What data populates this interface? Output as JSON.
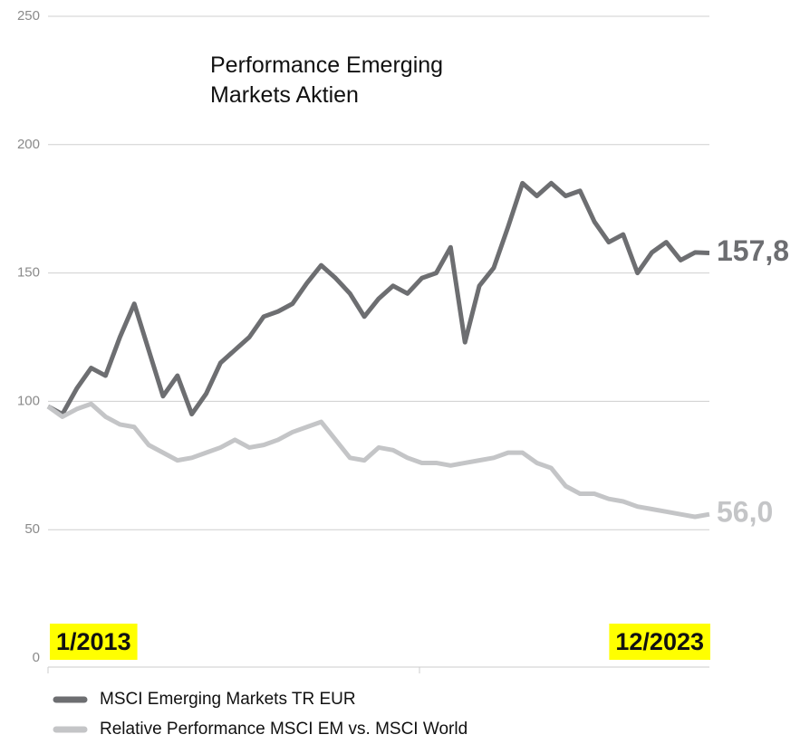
{
  "chart_data": {
    "type": "line",
    "title": "Performance Emerging Markets Aktien",
    "categories": [
      "1/2013",
      null,
      null,
      null,
      null,
      null,
      null,
      null,
      null,
      null,
      null,
      null,
      null,
      null,
      null,
      null,
      null,
      null,
      null,
      null,
      null,
      null,
      null,
      null,
      null,
      null,
      null,
      null,
      null,
      null,
      null,
      null,
      null,
      null,
      null,
      null,
      null,
      null,
      null,
      null,
      null,
      null,
      null,
      null,
      null,
      null,
      "12/2023"
    ],
    "series": [
      {
        "name": "MSCI Emerging Markets TR EUR",
        "color": "#6d6e71",
        "values": [
          98,
          95,
          105,
          113,
          110,
          125,
          138,
          120,
          102,
          110,
          95,
          103,
          115,
          120,
          125,
          133,
          135,
          138,
          146,
          153,
          148,
          142,
          133,
          140,
          145,
          142,
          148,
          150,
          160,
          123,
          145,
          152,
          168,
          185,
          180,
          185,
          180,
          182,
          170,
          162,
          165,
          150,
          158,
          162,
          155,
          158,
          157.8
        ],
        "value_labels": [
          null,
          null,
          null,
          null,
          null,
          null,
          null,
          null,
          null,
          null,
          null,
          null,
          null,
          null,
          null,
          null,
          null,
          null,
          null,
          null,
          null,
          null,
          null,
          null,
          null,
          null,
          null,
          null,
          null,
          null,
          null,
          null,
          null,
          null,
          null,
          null,
          null,
          null,
          null,
          null,
          null,
          null,
          null,
          null,
          null,
          null,
          "157,8"
        ]
      },
      {
        "name": "Relative Performance MSCI EM vs. MSCI World",
        "color": "#c4c5c7",
        "values": [
          98,
          94,
          97,
          99,
          94,
          91,
          90,
          83,
          80,
          77,
          78,
          80,
          82,
          85,
          82,
          83,
          85,
          88,
          90,
          92,
          85,
          78,
          77,
          82,
          81,
          78,
          76,
          76,
          75,
          76,
          77,
          78,
          80,
          80,
          76,
          74,
          67,
          64,
          64,
          62,
          61,
          59,
          58,
          57,
          56,
          55,
          56.0
        ],
        "value_labels": [
          null,
          null,
          null,
          null,
          null,
          null,
          null,
          null,
          null,
          null,
          null,
          null,
          null,
          null,
          null,
          null,
          null,
          null,
          null,
          null,
          null,
          null,
          null,
          null,
          null,
          null,
          null,
          null,
          null,
          null,
          null,
          null,
          null,
          null,
          null,
          null,
          null,
          null,
          null,
          null,
          null,
          null,
          null,
          null,
          null,
          null,
          "56,0"
        ]
      }
    ],
    "ylim": [
      0,
      250
    ],
    "yticks": [
      0,
      50,
      100,
      150,
      200,
      250
    ],
    "grid": true,
    "legend": "bottom"
  }
}
